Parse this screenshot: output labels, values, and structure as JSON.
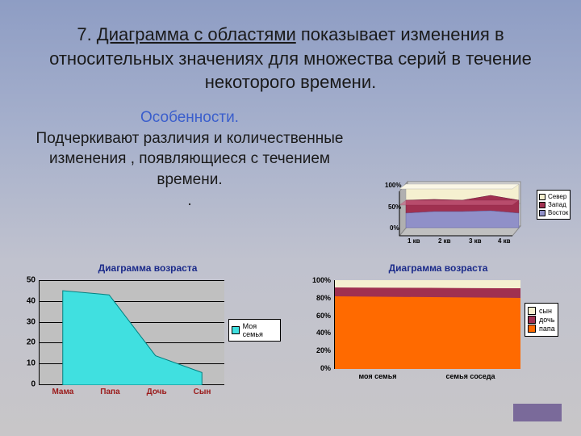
{
  "title": {
    "prefix": "7. ",
    "underlined": "Диаграмма с областями",
    "rest": " показывает изменения в относительных значениях для множества серий в течение некоторого времени."
  },
  "subtitle": {
    "heading": "Особенности.",
    "body": "Подчеркивают различия и количественные изменения , появляющиеся с течением времени.",
    "dot": "."
  },
  "chart3d": {
    "type": "3d-stacked-area",
    "yticks": [
      "100%",
      "50%",
      "0%"
    ],
    "xticks": [
      "1 кв",
      "2 кв",
      "3 кв",
      "4 кв"
    ],
    "legend": [
      {
        "label": "Север",
        "color": "#f5f0d0"
      },
      {
        "label": "Запад",
        "color": "#a03050"
      },
      {
        "label": "Восток",
        "color": "#9090c8"
      }
    ],
    "layers": [
      {
        "color_top": "#c8c8e8",
        "color_front": "#9090c8",
        "y": [
          35,
          38,
          40,
          36
        ]
      },
      {
        "color_top": "#c86080",
        "color_front": "#a03050",
        "y": [
          55,
          56,
          70,
          60
        ]
      },
      {
        "color_top": "#faf7e6",
        "color_front": "#f5f0d0",
        "y": [
          100,
          100,
          100,
          100
        ]
      }
    ],
    "background": "#d8d8d8"
  },
  "chart_bl": {
    "type": "area",
    "title": "Диаграмма возраста",
    "ylim": [
      0,
      50
    ],
    "yticks": [
      0,
      10,
      20,
      30,
      40,
      50
    ],
    "categories": [
      "Мама",
      "Папа",
      "Дочь",
      "Сын"
    ],
    "values": [
      45,
      43,
      14,
      6
    ],
    "series_label": "Моя семья",
    "area_color": "#40e0e0",
    "plot_bg": "#c0c0c0",
    "grid_color": "#000000",
    "xlabel_color": "#9a1a1a"
  },
  "chart_br": {
    "type": "stacked-100-area",
    "title": "Диаграмма возраста",
    "yticks": [
      "0%",
      "20%",
      "40%",
      "60%",
      "80%",
      "100%"
    ],
    "categories": [
      "моя семья",
      "семья соседа"
    ],
    "legend": [
      {
        "label": "сын",
        "color": "#f5f0d0"
      },
      {
        "label": "дочь",
        "color": "#a03050"
      },
      {
        "label": "папа",
        "color": "#ff6a00"
      }
    ],
    "stacks": [
      {
        "cat": "моя семья",
        "values": {
          "папа": 82,
          "дочь": 10,
          "сын": 8
        }
      },
      {
        "cat": "семья соседа",
        "values": {
          "папа": 80,
          "дочь": 11,
          "сын": 9
        }
      }
    ],
    "plot_bg": "#c0c0c0"
  },
  "corner_box_color": "#7a6a9a"
}
